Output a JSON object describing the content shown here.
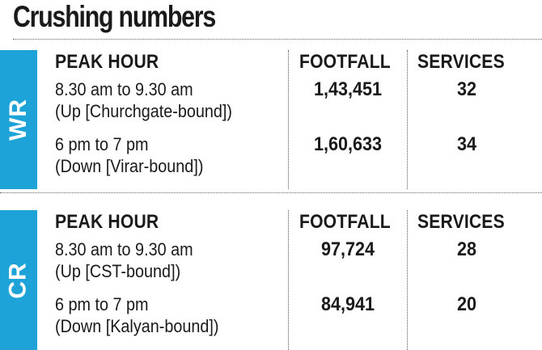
{
  "title": "Crushing numbers",
  "colors": {
    "band": "#1ea3d9",
    "text": "#1a1a1a"
  },
  "chart_data": {
    "type": "table",
    "title": "Crushing numbers",
    "columns": [
      "PEAK HOUR",
      "FOOTFALL",
      "SERVICES"
    ],
    "sections": [
      {
        "label": "WR",
        "rows": [
          {
            "period_line1": "8.30 am to 9.30 am",
            "period_line2": "(Up [Churchgate-bound])",
            "footfall": "1,43,451",
            "services": "32"
          },
          {
            "period_line1": "6 pm to 7 pm",
            "period_line2": "(Down [Virar-bound])",
            "footfall": "1,60,633",
            "services": "34"
          }
        ]
      },
      {
        "label": "CR",
        "rows": [
          {
            "period_line1": "8.30 am to 9.30 am",
            "period_line2": "(Up [CST-bound])",
            "footfall": "97,724",
            "services": "28"
          },
          {
            "period_line1": "6 pm to 7 pm",
            "period_line2": "(Down [Kalyan-bound])",
            "footfall": "84,941",
            "services": "20"
          }
        ]
      }
    ]
  }
}
